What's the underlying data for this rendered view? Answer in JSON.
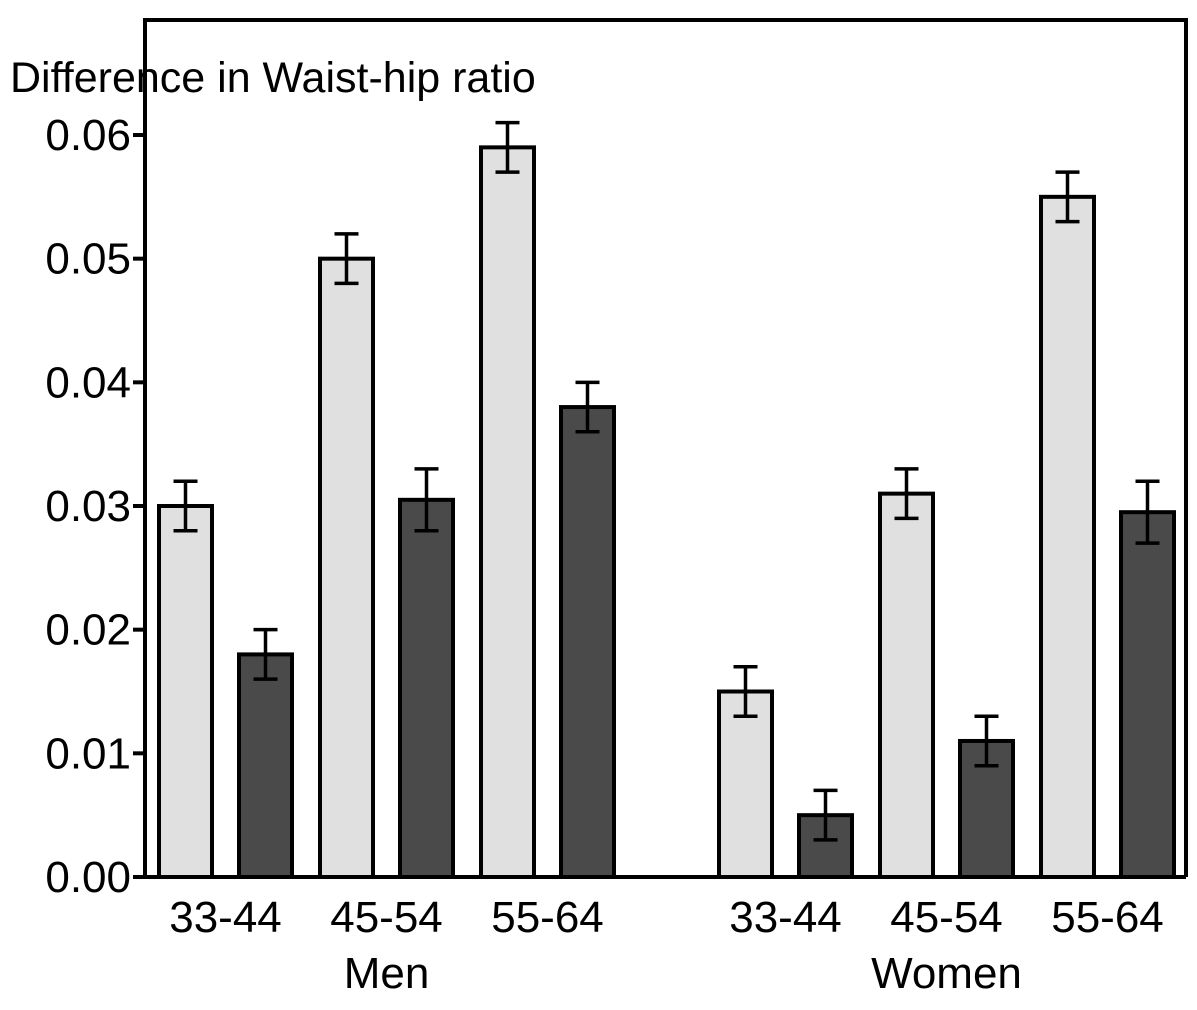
{
  "chart_data": {
    "type": "bar",
    "ylabel": "Difference in Waist-hip ratio",
    "xlabel": "",
    "ylim": [
      0,
      0.06
    ],
    "yticks": [
      "0.00",
      "0.01",
      "0.02",
      "0.03",
      "0.04",
      "0.05",
      "0.06"
    ],
    "grid": false,
    "legend": "none",
    "colors": {
      "light": "#e0e0e0",
      "dark": "#4a4a4a",
      "axis": "#000000"
    },
    "groups": [
      {
        "label": "Men",
        "categories": [
          "33-44",
          "45-54",
          "55-64"
        ],
        "series": [
          {
            "values": [
              0.03,
              0.05,
              0.059
            ],
            "error": [
              0.002,
              0.002,
              0.002
            ]
          },
          {
            "values": [
              0.018,
              0.0305,
              0.038
            ],
            "error": [
              0.002,
              0.0025,
              0.002
            ]
          }
        ]
      },
      {
        "label": "Women",
        "categories": [
          "33-44",
          "45-54",
          "55-64"
        ],
        "series": [
          {
            "values": [
              0.015,
              0.031,
              0.055
            ],
            "error": [
              0.002,
              0.002,
              0.002
            ]
          },
          {
            "values": [
              0.005,
              0.011,
              0.0295
            ],
            "error": [
              0.002,
              0.002,
              0.0025
            ]
          }
        ]
      }
    ]
  }
}
